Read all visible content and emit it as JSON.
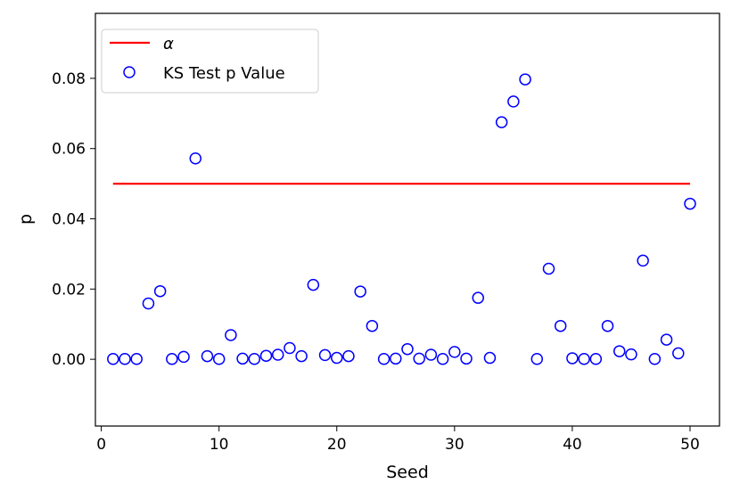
{
  "chart_data": {
    "type": "scatter",
    "xlabel": "Seed",
    "ylabel": "p",
    "xlim": [
      -0.5,
      52.5
    ],
    "ylim": [
      -0.019,
      0.0985
    ],
    "xticks": [
      "0",
      "10",
      "20",
      "30",
      "40",
      "50"
    ],
    "yticks": [
      "0.00",
      "0.02",
      "0.04",
      "0.06",
      "0.08"
    ],
    "grid": false,
    "legend_position": "top-left",
    "colors": {
      "alpha_line": "#ff0000",
      "markers": "#0000ff"
    },
    "series": [
      {
        "name": "α",
        "kind": "line",
        "x": [
          1,
          50
        ],
        "y": [
          0.05,
          0.05
        ]
      },
      {
        "name": "KS Test p Value",
        "kind": "scatter",
        "marker": "open-circle",
        "x": [
          1,
          2,
          3,
          4,
          5,
          6,
          7,
          8,
          9,
          10,
          11,
          12,
          13,
          14,
          15,
          16,
          17,
          18,
          19,
          20,
          21,
          22,
          23,
          24,
          25,
          26,
          27,
          28,
          29,
          30,
          31,
          32,
          33,
          34,
          35,
          36,
          37,
          38,
          39,
          40,
          41,
          42,
          43,
          44,
          45,
          46,
          47,
          48,
          49,
          50
        ],
        "y": [
          0.0001,
          0.0001,
          0.0001,
          0.0159,
          0.0194,
          0.0001,
          0.0007,
          0.0572,
          0.0009,
          0.0001,
          0.0069,
          0.0002,
          0.0001,
          0.001,
          0.0013,
          0.0032,
          0.0009,
          0.0212,
          0.0012,
          0.0004,
          0.0009,
          0.0193,
          0.0095,
          0.0001,
          0.0002,
          0.0029,
          0.0002,
          0.0013,
          0.0001,
          0.0021,
          0.0002,
          0.0175,
          0.0004,
          0.0675,
          0.0734,
          0.0797,
          0.0001,
          0.0258,
          0.0095,
          0.0003,
          0.0001,
          0.0001,
          0.0095,
          0.0023,
          0.0014,
          0.0281,
          0.0001,
          0.0056,
          0.0017,
          0.0443
        ]
      }
    ]
  }
}
